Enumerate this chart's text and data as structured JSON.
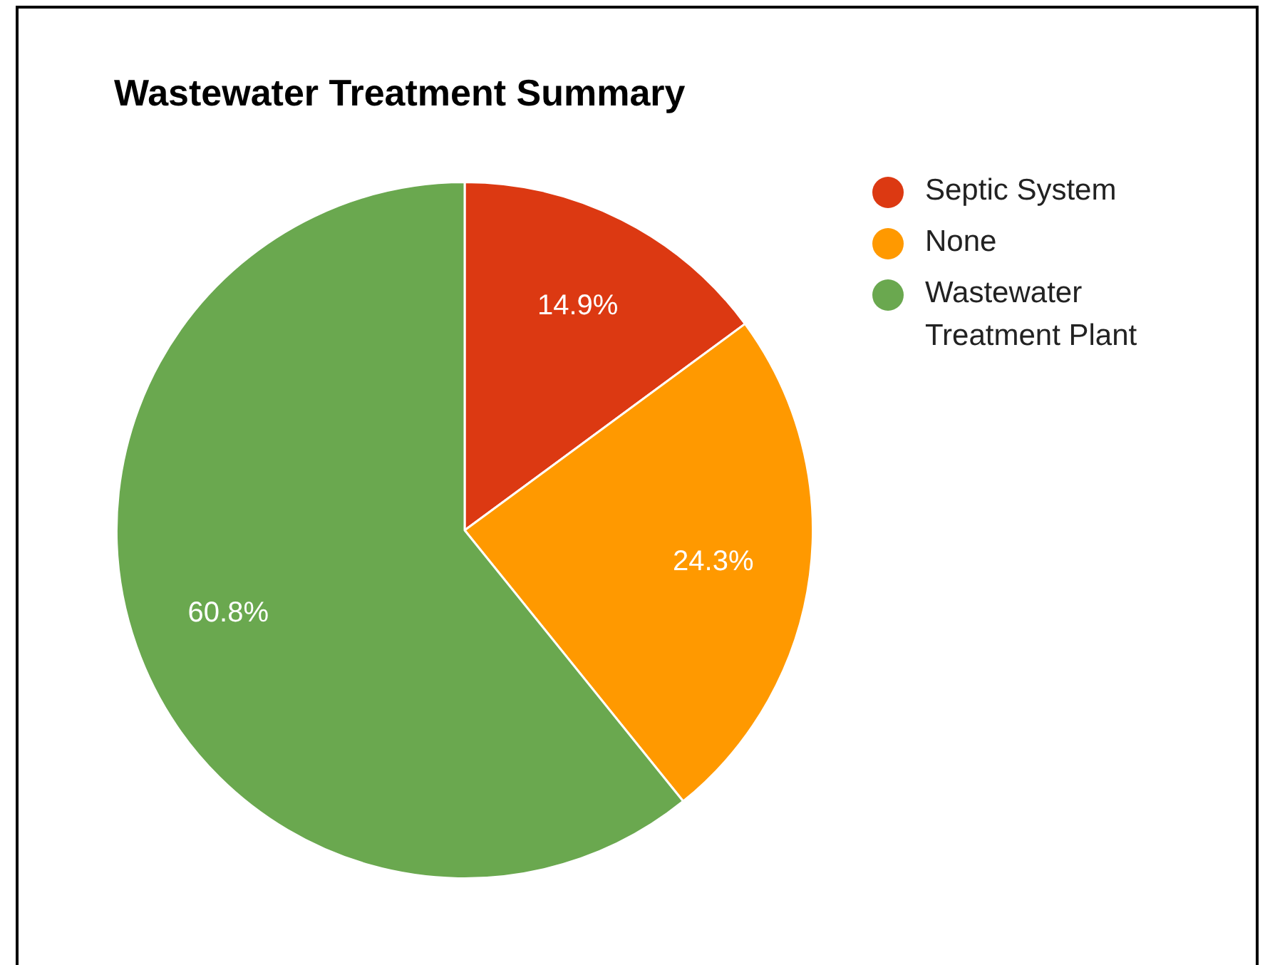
{
  "chart_data": {
    "type": "pie",
    "title": "Wastewater Treatment Summary",
    "categories": [
      "Septic System",
      "None",
      "Wastewater Treatment Plant"
    ],
    "values": [
      14.9,
      24.3,
      60.8
    ],
    "colors": [
      "#dc3912",
      "#ff9900",
      "#6aa84f"
    ],
    "value_labels": [
      "14.9%",
      "24.3%",
      "60.8%"
    ],
    "legend": "top right"
  }
}
